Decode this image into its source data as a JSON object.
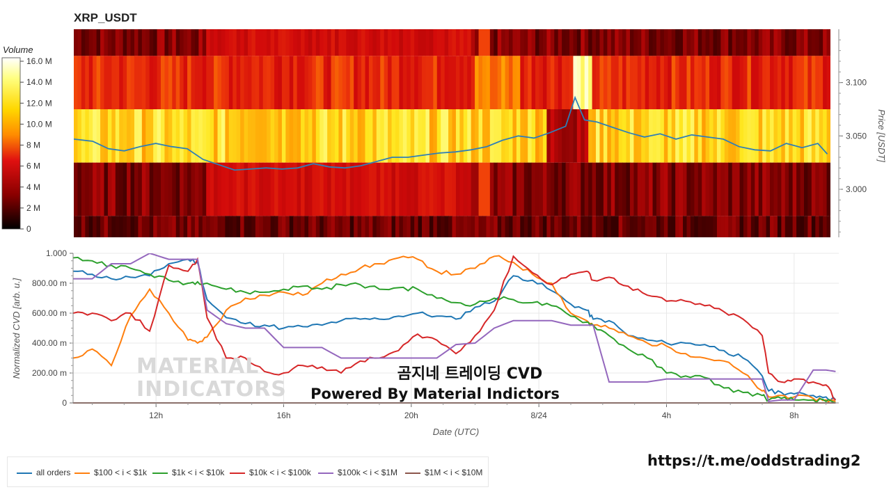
{
  "heatmap_chart": {
    "title": "XRP_USDT",
    "ylabel_right": "Price [USDT]",
    "price_ticks": [
      "3.100",
      "3.050",
      "3.000"
    ],
    "colorbar_title": "Volume",
    "colorbar_ticks": [
      "16.0 M",
      "14.0 M",
      "12.0 M",
      "10.0 M",
      "8 M",
      "6 M",
      "4 M",
      "2 M",
      "0"
    ]
  },
  "cvd_chart": {
    "ylabel": "Normalized CVD [arb. u.]",
    "xlabel": "Date (UTC)",
    "y_ticks": [
      "1.000",
      "800.00 m",
      "600.00 m",
      "400.00 m",
      "200.00 m",
      "0"
    ],
    "x_ticks": [
      "12h",
      "16h",
      "20h",
      "8/24",
      "4h",
      "8h"
    ]
  },
  "chart_data": [
    {
      "type": "heatmap",
      "title": "XRP_USDT",
      "ylabel": "Price [USDT]",
      "ylim": [
        2.955,
        3.15
      ],
      "price_bins": [
        {
          "low": 3.125,
          "high": 3.15,
          "volume_level": "low",
          "color": "#c00000"
        },
        {
          "low": 3.075,
          "high": 3.125,
          "volume_level": "medium",
          "color": "#e62010"
        },
        {
          "low": 3.025,
          "high": 3.075,
          "volume_level": "high",
          "color": "#ffd000"
        },
        {
          "low": 2.975,
          "high": 3.025,
          "volume_level": "low",
          "color": "#8a0000"
        },
        {
          "low": 2.955,
          "high": 2.975,
          "volume_level": "very low",
          "color": "#7a0000"
        }
      ],
      "colorbar": {
        "title": "Volume",
        "min": 0,
        "max": 16.5,
        "unit": "M"
      },
      "price_series": {
        "color": "#2f7fb7",
        "hours": [
          9.4,
          10.0,
          10.5,
          11.0,
          11.5,
          12.0,
          12.5,
          13.0,
          13.5,
          14.0,
          14.5,
          15.0,
          15.5,
          16.0,
          16.5,
          17.0,
          17.5,
          18.0,
          18.5,
          19.0,
          19.5,
          20.0,
          20.5,
          21.0,
          21.5,
          22.0,
          22.5,
          23.0,
          23.5,
          24.0,
          24.5,
          25.0,
          25.3,
          25.6,
          26.0,
          26.5,
          27.0,
          27.5,
          28.0,
          28.5,
          29.0,
          29.5,
          30.0,
          30.5,
          31.0,
          31.5,
          32.0,
          32.5,
          33.0,
          33.3
        ],
        "prices": [
          3.047,
          3.045,
          3.038,
          3.036,
          3.04,
          3.043,
          3.04,
          3.038,
          3.028,
          3.023,
          3.018,
          3.019,
          3.02,
          3.019,
          3.02,
          3.024,
          3.021,
          3.02,
          3.022,
          3.026,
          3.03,
          3.03,
          3.032,
          3.034,
          3.035,
          3.037,
          3.04,
          3.046,
          3.05,
          3.048,
          3.053,
          3.059,
          3.086,
          3.065,
          3.063,
          3.058,
          3.053,
          3.049,
          3.052,
          3.047,
          3.051,
          3.049,
          3.047,
          3.04,
          3.037,
          3.036,
          3.043,
          3.039,
          3.043,
          3.033
        ]
      }
    },
    {
      "type": "line",
      "xlabel": "Date (UTC)",
      "ylabel": "Normalized CVD [arb. u.]",
      "xlim": [
        9.4,
        33.4
      ],
      "ylim": [
        0,
        1.0
      ],
      "x_ticks": [
        {
          "hour": 12,
          "label": "12h"
        },
        {
          "hour": 16,
          "label": "16h"
        },
        {
          "hour": 20,
          "label": "20h"
        },
        {
          "hour": 24,
          "label": "8/24"
        },
        {
          "hour": 28,
          "label": "4h"
        },
        {
          "hour": 32,
          "label": "8h"
        }
      ],
      "x_hours": [
        9.4,
        10.0,
        10.6,
        11.2,
        11.8,
        12.4,
        13.0,
        13.3,
        13.6,
        14.2,
        14.8,
        15.4,
        16.0,
        16.6,
        17.2,
        17.8,
        18.4,
        19.0,
        19.6,
        20.2,
        20.8,
        21.4,
        22.0,
        22.6,
        23.2,
        23.8,
        24.4,
        25.0,
        25.5,
        25.7,
        26.2,
        26.8,
        27.4,
        28.0,
        28.6,
        29.2,
        29.8,
        30.4,
        31.0,
        31.2,
        31.6,
        32.0,
        32.6,
        33.0,
        33.3
      ],
      "series": [
        {
          "name": "all orders",
          "color": "#1f77b4",
          "values": [
            0.88,
            0.86,
            0.83,
            0.84,
            0.85,
            0.93,
            0.96,
            0.94,
            0.69,
            0.57,
            0.53,
            0.52,
            0.5,
            0.51,
            0.52,
            0.55,
            0.56,
            0.56,
            0.58,
            0.6,
            0.58,
            0.56,
            0.64,
            0.68,
            0.85,
            0.82,
            0.75,
            0.66,
            0.62,
            0.56,
            0.55,
            0.45,
            0.42,
            0.4,
            0.4,
            0.39,
            0.35,
            0.3,
            0.18,
            0.08,
            0.07,
            0.06,
            0.05,
            0.04,
            0.02
          ]
        },
        {
          "name": "$100 < i < $1k",
          "color": "#ff7f0e",
          "values": [
            0.3,
            0.36,
            0.25,
            0.58,
            0.76,
            0.6,
            0.42,
            0.4,
            0.44,
            0.62,
            0.7,
            0.72,
            0.74,
            0.72,
            0.8,
            0.86,
            0.9,
            0.93,
            0.97,
            0.96,
            0.88,
            0.86,
            0.9,
            0.98,
            0.94,
            0.86,
            0.8,
            0.6,
            0.55,
            0.52,
            0.5,
            0.45,
            0.4,
            0.38,
            0.33,
            0.3,
            0.28,
            0.2,
            0.08,
            0.04,
            0.05,
            0.04,
            0.03,
            0.02,
            0.01
          ]
        },
        {
          "name": "$1k < i < $10k",
          "color": "#2ca02c",
          "values": [
            0.97,
            0.95,
            0.92,
            0.9,
            0.86,
            0.82,
            0.8,
            0.81,
            0.8,
            0.76,
            0.74,
            0.74,
            0.76,
            0.78,
            0.76,
            0.79,
            0.79,
            0.76,
            0.77,
            0.76,
            0.7,
            0.67,
            0.66,
            0.7,
            0.69,
            0.67,
            0.65,
            0.58,
            0.54,
            0.52,
            0.45,
            0.36,
            0.3,
            0.2,
            0.18,
            0.17,
            0.1,
            0.07,
            0.05,
            0.02,
            0.03,
            0.02,
            0.02,
            0.01,
            0.0
          ]
        },
        {
          "name": "$10k < i < $100k",
          "color": "#d62728",
          "values": [
            0.6,
            0.6,
            0.55,
            0.6,
            0.48,
            0.92,
            0.88,
            0.96,
            0.57,
            0.3,
            0.3,
            0.21,
            0.2,
            0.25,
            0.24,
            0.2,
            0.28,
            0.3,
            0.35,
            0.46,
            0.42,
            0.33,
            0.45,
            0.62,
            0.98,
            0.87,
            0.79,
            0.86,
            0.88,
            0.82,
            0.84,
            0.78,
            0.72,
            0.68,
            0.68,
            0.65,
            0.61,
            0.56,
            0.45,
            0.2,
            0.14,
            0.16,
            0.14,
            0.12,
            0.02
          ]
        },
        {
          "name": "$100k < i < $1M",
          "color": "#9467bd",
          "values": [
            0.83,
            0.83,
            0.93,
            0.93,
            1.0,
            0.96,
            0.96,
            0.96,
            0.62,
            0.53,
            0.5,
            0.5,
            0.37,
            0.37,
            0.37,
            0.3,
            0.3,
            0.3,
            0.3,
            0.3,
            0.3,
            0.39,
            0.4,
            0.5,
            0.55,
            0.55,
            0.55,
            0.52,
            0.52,
            0.52,
            0.14,
            0.14,
            0.14,
            0.16,
            0.16,
            0.16,
            0.16,
            0.16,
            0.16,
            0.01,
            0.02,
            0.02,
            0.22,
            0.22,
            0.21
          ]
        },
        {
          "name": "$1M < i < $10M",
          "color": "#8c564b",
          "values": [
            0,
            0,
            0,
            0,
            0,
            0,
            0,
            0,
            0,
            0,
            0,
            0,
            0,
            0,
            0,
            0,
            0,
            0,
            0,
            0,
            0,
            0,
            0,
            0,
            0,
            0,
            0,
            0,
            0,
            0,
            0,
            0,
            0,
            0,
            0,
            0,
            0,
            0,
            0,
            0,
            0,
            0,
            0,
            0,
            0
          ]
        }
      ],
      "legend_placement": "bottom-left"
    }
  ],
  "overlay": {
    "line1": "곰지네 트레이딩 CVD",
    "line2": "Powered By Material Indictors"
  },
  "watermark": {
    "line1": "MATERIAL",
    "line2": "INDICATORS"
  },
  "link": "https://t.me/oddstrading2"
}
